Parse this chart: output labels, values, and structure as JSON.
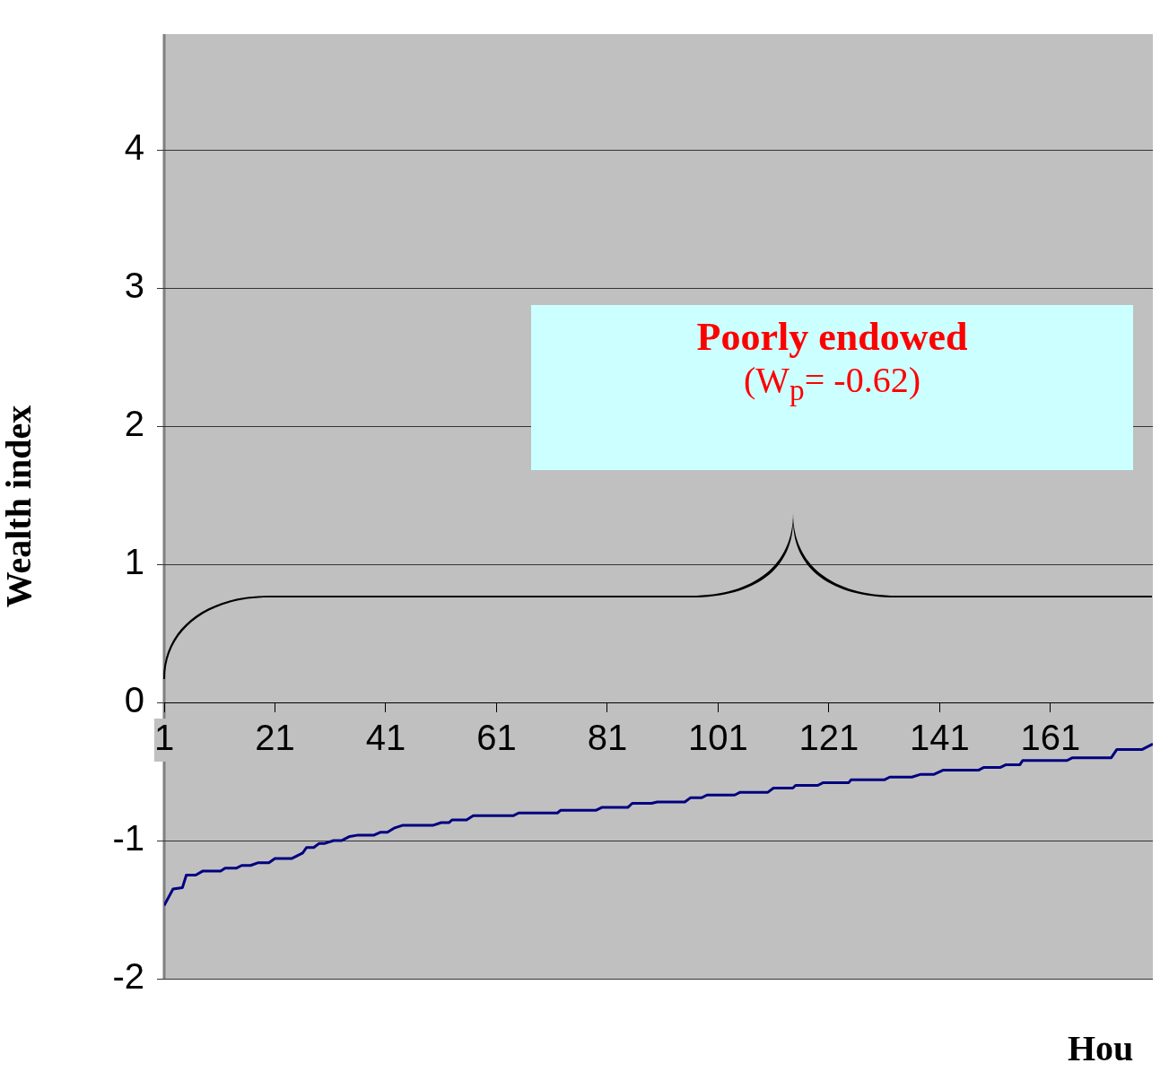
{
  "chart_data": {
    "type": "line",
    "xlabel": "Hou",
    "ylabel": "Wealth index",
    "annotations": [
      "Poorly endowed",
      "(W$_{p}$= -0.62)"
    ],
    "xlim": [
      1,
      179.5
    ],
    "xticks": [
      1,
      21,
      41,
      61,
      81,
      101,
      121,
      141,
      161
    ],
    "ylim": [
      -2,
      4.84
    ],
    "yticks": [
      -2,
      -1,
      0,
      1,
      2,
      3,
      4
    ],
    "grid": "y",
    "legend": false,
    "marker": "none",
    "line_style": "solid",
    "series": [
      {
        "color": "#000080",
        "x": [
          1,
          2.6,
          4.3,
          5,
          6.7,
          8,
          11.2,
          12,
          14,
          15,
          16.6,
          18,
          19.9,
          21,
          24,
          26,
          26.7,
          28,
          29,
          30,
          31.6,
          33,
          34.5,
          36,
          38.9,
          40,
          41.3,
          42.5,
          44,
          49.5,
          51,
          52.4,
          53,
          55.6,
          56.8,
          64,
          65,
          72,
          72.6,
          79,
          80,
          84.7,
          85.5,
          89,
          90,
          95,
          96,
          98,
          99,
          104,
          105,
          110,
          111,
          114.5,
          115,
          119,
          120,
          124.6,
          125,
          131,
          132,
          136,
          137.6,
          140,
          141.6,
          148,
          149,
          152,
          153,
          155.5,
          156,
          164,
          165,
          172,
          173,
          177.6,
          179.5
        ],
        "values": [
          -1.47,
          -1.35,
          -1.34,
          -1.25,
          -1.25,
          -1.22,
          -1.22,
          -1.2,
          -1.2,
          -1.18,
          -1.18,
          -1.16,
          -1.16,
          -1.13,
          -1.13,
          -1.09,
          -1.05,
          -1.05,
          -1.02,
          -1.02,
          -1.0,
          -1.0,
          -0.97,
          -0.96,
          -0.96,
          -0.94,
          -0.94,
          -0.91,
          -0.89,
          -0.89,
          -0.87,
          -0.87,
          -0.85,
          -0.85,
          -0.82,
          -0.82,
          -0.8,
          -0.8,
          -0.78,
          -0.78,
          -0.76,
          -0.76,
          -0.73,
          -0.73,
          -0.72,
          -0.72,
          -0.69,
          -0.69,
          -0.67,
          -0.67,
          -0.65,
          -0.65,
          -0.62,
          -0.62,
          -0.6,
          -0.6,
          -0.58,
          -0.58,
          -0.56,
          -0.56,
          -0.54,
          -0.54,
          -0.52,
          -0.52,
          -0.49,
          -0.49,
          -0.47,
          -0.47,
          -0.45,
          -0.45,
          -0.42,
          -0.42,
          -0.4,
          -0.4,
          -0.34,
          -0.34,
          -0.3
        ]
      }
    ]
  }
}
